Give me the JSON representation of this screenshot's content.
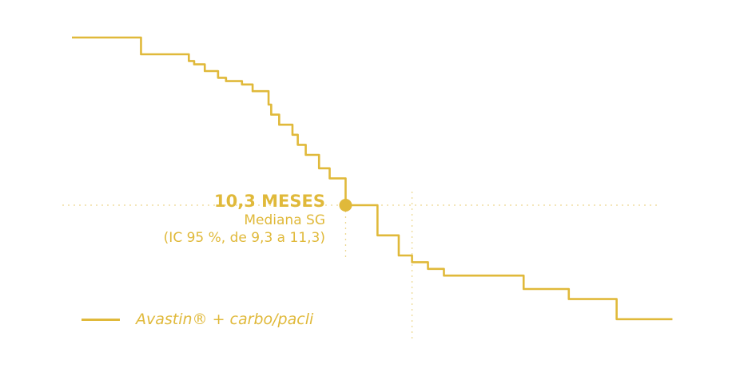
{
  "chart_data": {
    "type": "line",
    "title": "",
    "xlabel": "",
    "ylabel": "",
    "xlim": [
      0,
      24
    ],
    "ylim": [
      0,
      1
    ],
    "grid": false,
    "legend_position": "bottom-left",
    "color": "#e0b93a",
    "series": [
      {
        "name": "Avastin® + carbo/pacli",
        "step": true,
        "x": [
          0,
          2.6,
          4.2,
          4.4,
          4.6,
          5.0,
          5.5,
          5.8,
          6.4,
          6.8,
          7.4,
          7.5,
          7.8,
          8.3,
          8.5,
          8.8,
          9.3,
          9.7,
          10.3,
          11.5,
          12.3,
          12.8,
          13.4,
          14.0,
          16.8,
          17.0,
          18.5,
          18.7,
          20.3,
          20.5,
          22.6
        ],
        "y": [
          1.0,
          0.95,
          0.95,
          0.93,
          0.92,
          0.9,
          0.88,
          0.87,
          0.86,
          0.84,
          0.8,
          0.77,
          0.74,
          0.71,
          0.68,
          0.65,
          0.61,
          0.58,
          0.5,
          0.41,
          0.35,
          0.33,
          0.31,
          0.29,
          0.29,
          0.25,
          0.25,
          0.22,
          0.22,
          0.16,
          0.16
        ]
      }
    ],
    "median": {
      "x": 10.3,
      "y": 0.5
    },
    "reference_x": 12.8,
    "annotation": {
      "value": "10,3 MESES",
      "label": "Mediana SG",
      "ci": "(IC 95 %, de 9,3 a 11,3)"
    }
  }
}
